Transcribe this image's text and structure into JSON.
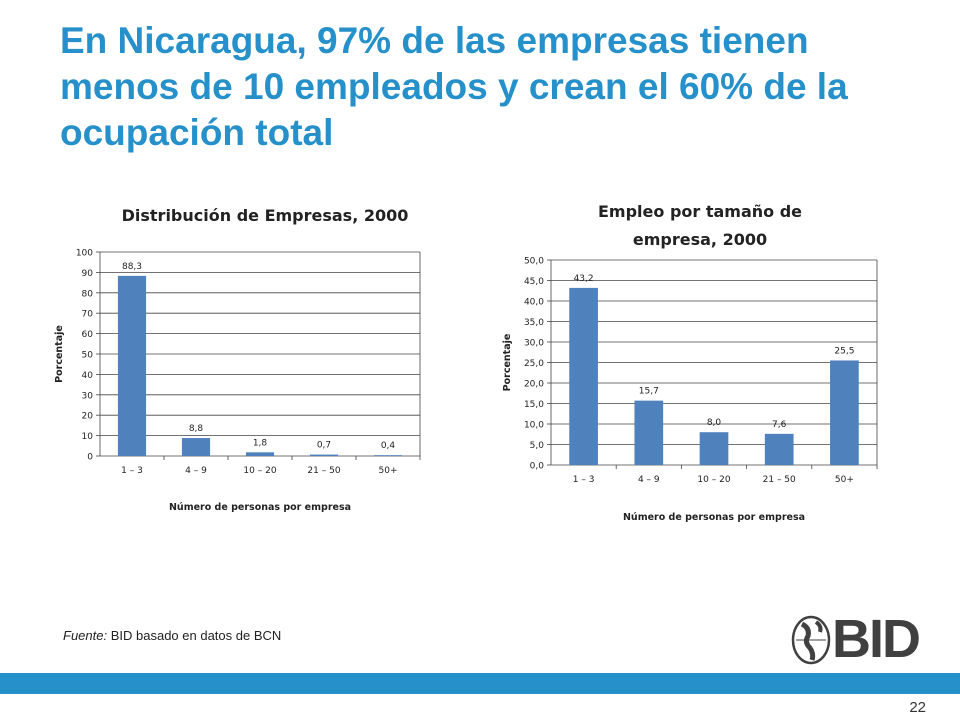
{
  "slide": {
    "title": "En Nicaragua, 97% de las empresas tienen menos de 10 empleados y crean el 60% de la ocupación total",
    "source_label": "Fuente:",
    "source_text": "BID basado en datos de BCN",
    "logo_text": "BID",
    "page_number": "22"
  },
  "colors": {
    "title": "#2590c9",
    "bar": "#4f81bd",
    "footer": "#2590c9",
    "grid": "#444444"
  },
  "chart_data": [
    {
      "type": "bar",
      "title": "Distribución de Empresas, 2000",
      "xlabel": "Número de personas por empresa",
      "ylabel": "Porcentaje",
      "categories": [
        "1 – 3",
        "4 – 9",
        "10 – 20",
        "21 – 50",
        "50+"
      ],
      "values": [
        88.3,
        8.8,
        1.8,
        0.7,
        0.4
      ],
      "data_labels": [
        "88,3",
        "8,8",
        "1,8",
        "0,7",
        "0,4"
      ],
      "ylim": [
        0,
        100
      ],
      "ytick_values": [
        0,
        10,
        20,
        30,
        40,
        50,
        60,
        70,
        80,
        90,
        100
      ],
      "ytick_labels": [
        "0",
        "10",
        "20",
        "30",
        "40",
        "50",
        "60",
        "70",
        "80",
        "90",
        "100"
      ],
      "grid": true
    },
    {
      "type": "bar",
      "title": "Empleo por tamaño de empresa, 2000",
      "xlabel": "Número de personas por empresa",
      "ylabel": "Porcentaje",
      "categories": [
        "1 – 3",
        "4 – 9",
        "10 – 20",
        "21 – 50",
        "50+"
      ],
      "values": [
        43.2,
        15.7,
        8.0,
        7.6,
        25.5
      ],
      "data_labels": [
        "43,2",
        "15,7",
        "8,0",
        "7,6",
        "25,5"
      ],
      "ylim": [
        0,
        50
      ],
      "ytick_values": [
        0,
        5,
        10,
        15,
        20,
        25,
        30,
        35,
        40,
        45,
        50
      ],
      "ytick_labels": [
        "0,0",
        "5,0",
        "10,0",
        "15,0",
        "20,0",
        "25,0",
        "30,0",
        "35,0",
        "40,0",
        "45,0",
        "50,0"
      ],
      "grid": true
    }
  ]
}
